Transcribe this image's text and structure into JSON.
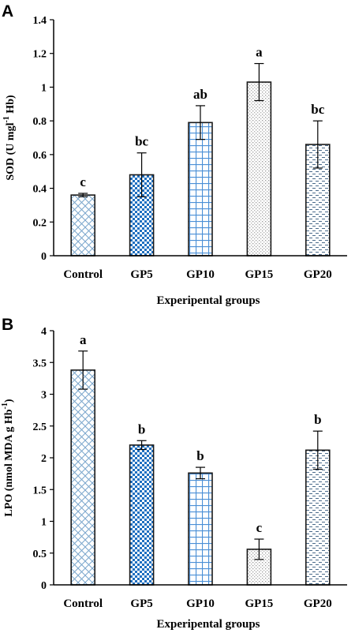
{
  "chart_data": [
    {
      "panel": "A",
      "type": "bar",
      "categories": [
        "Control",
        "GP5",
        "GP10",
        "GP15",
        "GP20"
      ],
      "values": [
        0.36,
        0.48,
        0.79,
        1.03,
        0.66
      ],
      "errors": [
        0.01,
        0.13,
        0.1,
        0.11,
        0.14
      ],
      "significance": [
        "c",
        "bc",
        "ab",
        "a",
        "bc"
      ],
      "patterns": [
        "crosshatch",
        "checker",
        "grid",
        "dots",
        "dashes"
      ],
      "xlabel": "Experipental groups",
      "ylabel_main": "SOD (U mgl",
      "ylabel_sup": "-1",
      "ylabel_end": " Hb)",
      "ylim": [
        0,
        1.4
      ],
      "yticks": [
        0,
        0.2,
        0.4,
        0.6,
        0.8,
        1,
        1.2,
        1.4
      ],
      "ytick_labels": [
        "0",
        "0.2",
        "0.4",
        "0.6",
        "0.8",
        "1",
        "1.2",
        "1.4"
      ],
      "grid": false
    },
    {
      "panel": "B",
      "type": "bar",
      "categories": [
        "Control",
        "GP5",
        "GP10",
        "GP15",
        "GP20"
      ],
      "values": [
        3.38,
        2.2,
        1.76,
        0.56,
        2.12
      ],
      "errors": [
        0.3,
        0.07,
        0.09,
        0.16,
        0.3
      ],
      "significance": [
        "a",
        "b",
        "b",
        "c",
        "b"
      ],
      "patterns": [
        "crosshatch",
        "checker",
        "grid",
        "dots",
        "dashes"
      ],
      "xlabel": "Experipental groups",
      "ylabel_main": "LPO (nmol MDA  g Hb",
      "ylabel_sup": "-1",
      "ylabel_end": ")",
      "ylim": [
        0,
        4
      ],
      "yticks": [
        0,
        0.5,
        1,
        1.5,
        2,
        2.5,
        3,
        3.5,
        4
      ],
      "ytick_labels": [
        "0",
        "0.5",
        "1",
        "1.5",
        "2",
        "2.5",
        "3",
        "3.5",
        "4"
      ],
      "grid": false
    }
  ],
  "colors": {
    "axis": "#000000",
    "bar_border": "#1a1a1a",
    "crosshatch": "#7aa6cc",
    "checker": "#1f6fc0",
    "grid": "#4a8fd6",
    "dots": "#9a9a9a",
    "dashes": "#4a6a8a"
  }
}
